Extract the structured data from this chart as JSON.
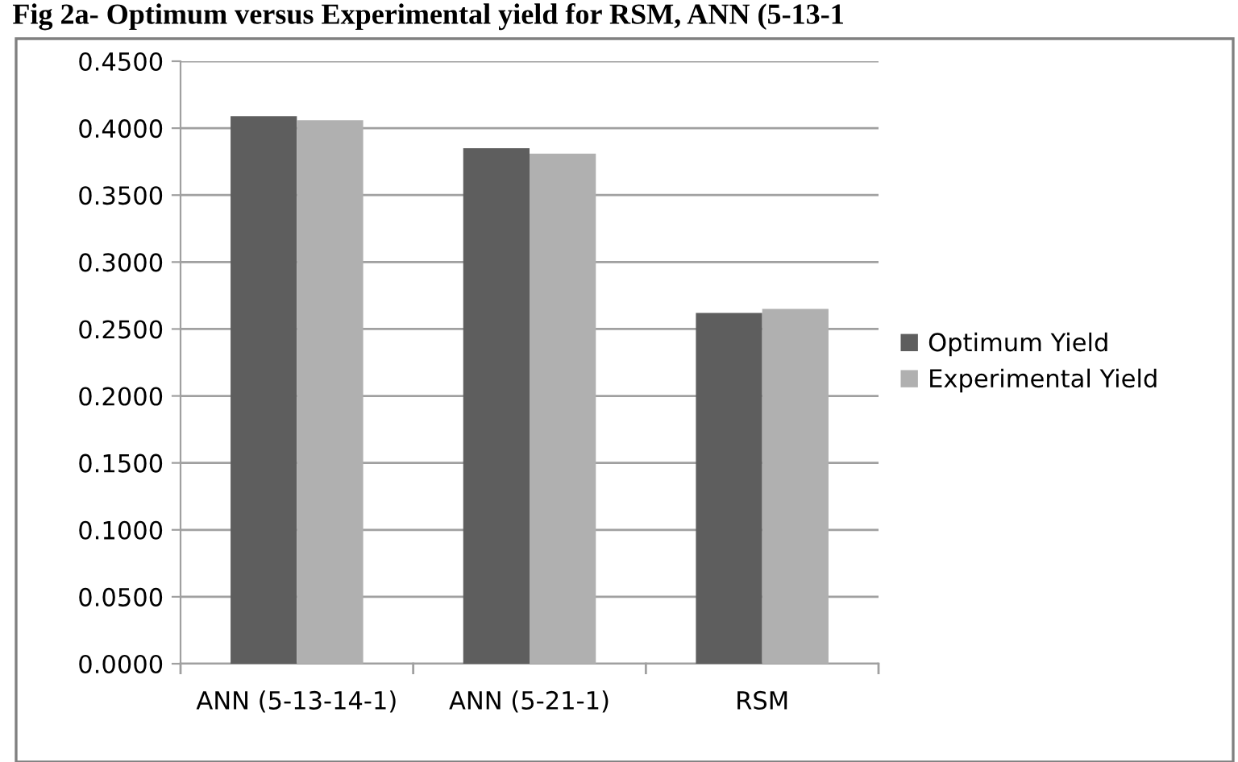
{
  "chart_data": {
    "type": "bar",
    "title": "Fig 2a- Optimum versus Experimental yield for RSM, ANN (5-13-1",
    "categories": [
      "ANN (5-13-14-1)",
      "ANN (5-21-1)",
      "RSM"
    ],
    "series": [
      {
        "name": "Optimum Yield",
        "color": "#5e5e5e",
        "values": [
          0.409,
          0.385,
          0.262
        ]
      },
      {
        "name": "Experimental Yield",
        "color": "#b0b0b0",
        "values": [
          0.406,
          0.381,
          0.265
        ]
      }
    ],
    "ylim": [
      0,
      0.45
    ],
    "yticks": [
      {
        "value": 0,
        "label": "0.0000"
      },
      {
        "value": 0.05,
        "label": "0.0500"
      },
      {
        "value": 0.1,
        "label": "0.1000"
      },
      {
        "value": 0.15,
        "label": "0.1500"
      },
      {
        "value": 0.2,
        "label": "0.2000"
      },
      {
        "value": 0.25,
        "label": "0.2500"
      },
      {
        "value": 0.3,
        "label": "0.3000"
      },
      {
        "value": 0.35,
        "label": "0.3500"
      },
      {
        "value": 0.4,
        "label": "0.4000"
      },
      {
        "value": 0.45,
        "label": "0.4500"
      }
    ],
    "grid": "y",
    "legend": "right"
  }
}
